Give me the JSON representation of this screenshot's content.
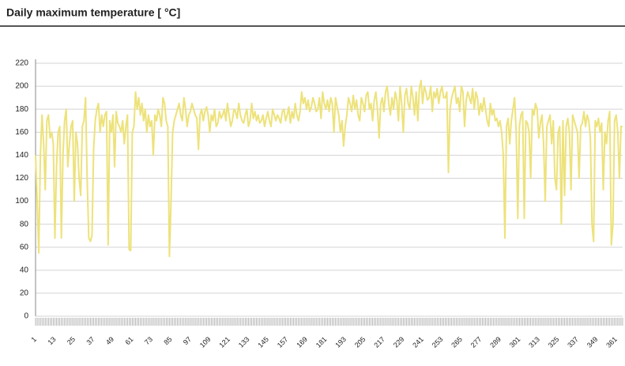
{
  "chart_data": {
    "type": "line",
    "title": "Daily maximum temperature [ °C]",
    "categories": [
      "1",
      null,
      null,
      null,
      null,
      null,
      null,
      null,
      null,
      null,
      null,
      null,
      "13",
      null,
      null,
      null,
      null,
      null,
      null,
      null,
      null,
      null,
      null,
      null,
      "25",
      null,
      null,
      null,
      null,
      null,
      null,
      null,
      null,
      null,
      null,
      null,
      "37",
      null,
      null,
      null,
      null,
      null,
      null,
      null,
      null,
      null,
      null,
      null,
      "49",
      null,
      null,
      null,
      null,
      null,
      null,
      null,
      null,
      null,
      null,
      null,
      "61",
      null,
      null,
      null,
      null,
      null,
      null,
      null,
      null,
      null,
      null,
      null,
      "73",
      null,
      null,
      null,
      null,
      null,
      null,
      null,
      null,
      null,
      null,
      null,
      "85",
      null,
      null,
      null,
      null,
      null,
      null,
      null,
      null,
      null,
      null,
      null,
      "97",
      null,
      null,
      null,
      null,
      null,
      null,
      null,
      null,
      null,
      null,
      null,
      "109",
      null,
      null,
      null,
      null,
      null,
      null,
      null,
      null,
      null,
      null,
      null,
      "121",
      null,
      null,
      null,
      null,
      null,
      null,
      null,
      null,
      null,
      null,
      null,
      "133",
      null,
      null,
      null,
      null,
      null,
      null,
      null,
      null,
      null,
      null,
      null,
      "145",
      null,
      null,
      null,
      null,
      null,
      null,
      null,
      null,
      null,
      null,
      null,
      "157",
      null,
      null,
      null,
      null,
      null,
      null,
      null,
      null,
      null,
      null,
      null,
      "169",
      null,
      null,
      null,
      null,
      null,
      null,
      null,
      null,
      null,
      null,
      null,
      "181",
      null,
      null,
      null,
      null,
      null,
      null,
      null,
      null,
      null,
      null,
      null,
      "193",
      null,
      null,
      null,
      null,
      null,
      null,
      null,
      null,
      null,
      null,
      null,
      "205",
      null,
      null,
      null,
      null,
      null,
      null,
      null,
      null,
      null,
      null,
      null,
      "217",
      null,
      null,
      null,
      null,
      null,
      null,
      null,
      null,
      null,
      null,
      null,
      "229",
      null,
      null,
      null,
      null,
      null,
      null,
      null,
      null,
      null,
      null,
      null,
      "241",
      null,
      null,
      null,
      null,
      null,
      null,
      null,
      null,
      null,
      null,
      null,
      "253",
      null,
      null,
      null,
      null,
      null,
      null,
      null,
      null,
      null,
      null,
      null,
      "265",
      null,
      null,
      null,
      null,
      null,
      null,
      null,
      null,
      null,
      null,
      null,
      "277",
      null,
      null,
      null,
      null,
      null,
      null,
      null,
      null,
      null,
      null,
      null,
      "289",
      null,
      null,
      null,
      null,
      null,
      null,
      null,
      null,
      null,
      null,
      null,
      "301",
      null,
      null,
      null,
      null,
      null,
      null,
      null,
      null,
      null,
      null,
      null,
      "313",
      null,
      null,
      null,
      null,
      null,
      null,
      null,
      null,
      null,
      null,
      null,
      "325",
      null,
      null,
      null,
      null,
      null,
      null,
      null,
      null,
      null,
      null,
      null,
      "337",
      null,
      null,
      null,
      null,
      null,
      null,
      null,
      null,
      null,
      null,
      null,
      "349",
      null,
      null,
      null,
      null,
      null,
      null,
      null,
      null,
      null,
      null,
      null,
      "361",
      null,
      null,
      null,
      null
    ],
    "values": [
      140,
      100,
      55,
      140,
      175,
      150,
      110,
      170,
      175,
      155,
      160,
      150,
      68,
      130,
      160,
      165,
      68,
      140,
      170,
      180,
      130,
      150,
      165,
      170,
      100,
      160,
      150,
      120,
      105,
      165,
      170,
      190,
      120,
      68,
      65,
      70,
      145,
      170,
      180,
      185,
      160,
      175,
      165,
      175,
      178,
      62,
      170,
      160,
      175,
      130,
      178,
      168,
      165,
      160,
      170,
      150,
      165,
      175,
      58,
      57,
      160,
      165,
      195,
      180,
      190,
      175,
      185,
      170,
      180,
      160,
      175,
      165,
      170,
      140,
      175,
      170,
      180,
      175,
      165,
      190,
      185,
      170,
      165,
      52,
      100,
      160,
      170,
      175,
      180,
      185,
      175,
      170,
      190,
      180,
      165,
      175,
      178,
      185,
      180,
      175,
      172,
      145,
      175,
      180,
      170,
      178,
      182,
      175,
      160,
      175,
      170,
      180,
      165,
      168,
      178,
      172,
      175,
      180,
      170,
      185,
      175,
      165,
      170,
      180,
      178,
      172,
      185,
      175,
      170,
      168,
      175,
      180,
      165,
      170,
      185,
      172,
      178,
      170,
      175,
      168,
      170,
      175,
      165,
      172,
      178,
      170,
      165,
      180,
      175,
      170,
      175,
      172,
      168,
      178,
      180,
      170,
      175,
      182,
      168,
      178,
      172,
      185,
      175,
      170,
      178,
      195,
      185,
      190,
      180,
      188,
      178,
      182,
      190,
      185,
      178,
      180,
      190,
      172,
      195,
      185,
      180,
      188,
      178,
      190,
      185,
      160,
      190,
      182,
      175,
      160,
      170,
      148,
      165,
      175,
      190,
      185,
      178,
      192,
      180,
      188,
      175,
      170,
      190,
      185,
      178,
      192,
      195,
      180,
      185,
      170,
      188,
      195,
      180,
      155,
      185,
      190,
      178,
      195,
      200,
      185,
      175,
      190,
      180,
      195,
      188,
      170,
      200,
      185,
      160,
      192,
      198,
      185,
      180,
      200,
      190,
      175,
      195,
      170,
      198,
      205,
      185,
      200,
      195,
      188,
      190,
      200,
      178,
      195,
      190,
      198,
      185,
      195,
      200,
      190,
      190,
      195,
      125,
      180,
      190,
      195,
      200,
      185,
      190,
      178,
      200,
      195,
      165,
      188,
      195,
      190,
      185,
      198,
      180,
      195,
      190,
      175,
      185,
      178,
      190,
      180,
      170,
      165,
      185,
      175,
      180,
      170,
      172,
      165,
      170,
      160,
      140,
      68,
      165,
      172,
      150,
      170,
      180,
      190,
      160,
      85,
      165,
      175,
      178,
      85,
      170,
      168,
      160,
      120,
      180,
      175,
      185,
      180,
      155,
      168,
      175,
      150,
      100,
      165,
      170,
      175,
      150,
      170,
      120,
      110,
      160,
      165,
      80,
      170,
      105,
      165,
      172,
      160,
      110,
      175,
      170,
      165,
      160,
      120,
      165,
      168,
      178,
      165,
      175,
      170,
      155,
      80,
      65,
      170,
      165,
      172,
      160,
      168,
      110,
      160,
      150,
      170,
      178,
      62,
      80,
      170,
      175,
      160,
      120,
      165,
      165
    ],
    "color": "#ede27a",
    "ylim": [
      0,
      220
    ],
    "yticks": [
      0,
      20,
      40,
      60,
      80,
      100,
      120,
      140,
      160,
      180,
      200,
      220
    ],
    "grid": true
  }
}
